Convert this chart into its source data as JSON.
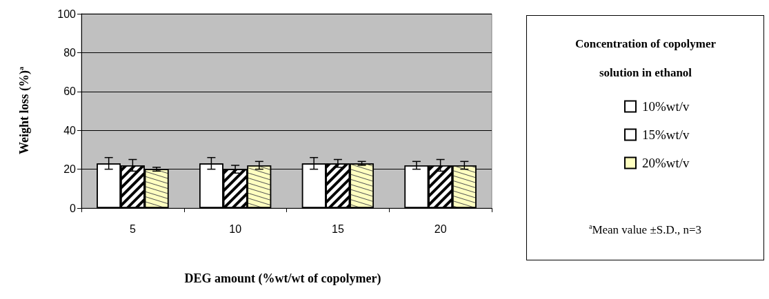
{
  "chart_data": {
    "type": "bar",
    "xlabel": "DEG amount (%wt/wt of copolymer)",
    "ylabel": "Weight loss (%)$^{a}$",
    "legend_title": "Concentration of copolymer solution in ethanol",
    "annotations": [
      "$^{a}$Mean value ±S.D., n=3"
    ],
    "categories": [
      "5",
      "10",
      "15",
      "20"
    ],
    "series": [
      {
        "name": "10%wt/v",
        "color": "#ffffff",
        "values": [
          23,
          23,
          23,
          22
        ],
        "errors": [
          3,
          3,
          3,
          2
        ]
      },
      {
        "name": "15%wt/v",
        "color": "#ffffff",
        "values": [
          22,
          20,
          23,
          22
        ],
        "errors": [
          3,
          2,
          2,
          3
        ]
      },
      {
        "name": "20%wt/v",
        "color": "#ffffc0",
        "values": [
          20,
          22,
          23,
          22
        ],
        "errors": [
          1,
          2,
          1,
          2
        ]
      }
    ],
    "ylim": [
      0,
      100
    ],
    "yticks": [
      0,
      20,
      40,
      60,
      80,
      100
    ],
    "grid": "y",
    "legend": "right"
  }
}
